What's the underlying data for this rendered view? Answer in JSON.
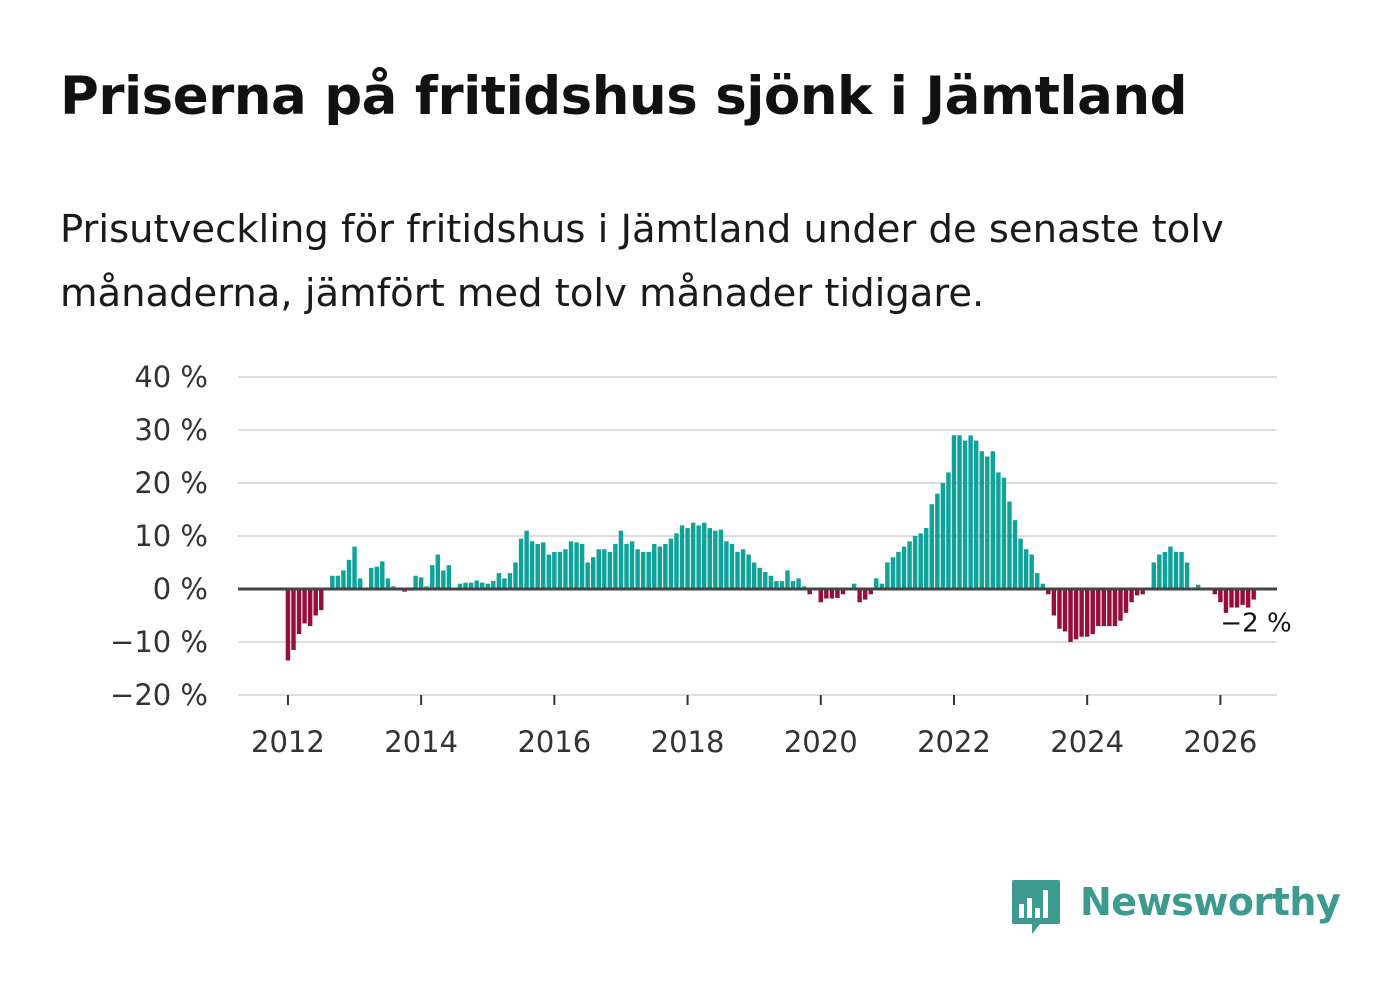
{
  "header": {
    "title": "Priserna på fritidshus sjönk i Jämtland",
    "subtitle": "Prisutveckling för fritidshus i Jämtland under de senaste tolv månaderna, jämfört med tolv månader tidigare."
  },
  "colors": {
    "positive": "#0fa39a",
    "negative": "#960f3c",
    "grid": "#dddddd",
    "zero_line": "#444444",
    "brand": "#3d9a8f"
  },
  "brand": {
    "name": "Newsworthy",
    "icon": "newsworthy-bar-chart-icon"
  },
  "chart_data": {
    "type": "bar",
    "title": "Priserna på fritidshus sjönk i Jämtland",
    "xlabel": "",
    "ylabel": "",
    "ylim": [
      -20,
      40
    ],
    "y_ticks": [
      40,
      30,
      20,
      10,
      0,
      -10,
      -20
    ],
    "y_tick_labels": [
      "40 %",
      "30 %",
      "20 %",
      "10 %",
      "0 %",
      "−10 %",
      "−20 %"
    ],
    "x_ticks": [
      2012,
      2014,
      2016,
      2018,
      2020,
      2022,
      2024,
      2026
    ],
    "x_tick_labels": [
      "2012",
      "2014",
      "2016",
      "2018",
      "2020",
      "2022",
      "2024",
      "2026"
    ],
    "x_range": [
      2011.25,
      2026.85
    ],
    "grid": true,
    "series": [
      {
        "name": "Prisutveckling",
        "start": 2012.0,
        "step_months": 1,
        "values": [
          -13.5,
          -11.5,
          -8.5,
          -6.5,
          -7,
          -5,
          -4,
          0,
          2.5,
          2.5,
          3.5,
          5.5,
          8,
          2,
          0,
          4,
          4.2,
          5.2,
          2,
          0.5,
          0,
          -0.5,
          -0.3,
          2.5,
          2.2,
          0.5,
          4.5,
          6.5,
          3.5,
          4.5,
          0,
          1,
          1.2,
          1.2,
          1.6,
          1.2,
          1,
          1.5,
          3,
          2,
          3,
          5,
          9.5,
          11,
          9,
          8.5,
          8.8,
          6.5,
          7,
          7,
          7.5,
          9,
          8.8,
          8.5,
          5,
          6,
          7.5,
          7.5,
          7,
          8.5,
          11,
          8.5,
          9,
          7.5,
          7,
          7,
          8.5,
          8,
          8.5,
          9.5,
          10.5,
          12,
          11.5,
          12.5,
          12,
          12.5,
          11.5,
          11,
          11.2,
          9,
          8.5,
          7,
          7.5,
          6.5,
          5,
          4,
          3.2,
          2.5,
          1.5,
          1.5,
          3.5,
          1.5,
          2,
          0.5,
          -1,
          0,
          -2.5,
          -1.8,
          -1.8,
          -1.7,
          -1,
          0,
          1,
          -2.5,
          -2,
          -1,
          2,
          1,
          5,
          6,
          7,
          8,
          9,
          10,
          10.5,
          11.5,
          16,
          18,
          20,
          22,
          29,
          29,
          28,
          29,
          28,
          26,
          25,
          26,
          22,
          21,
          16.5,
          13,
          9.5,
          7.5,
          6.5,
          3,
          1,
          -1,
          -5,
          -7.5,
          -8,
          -10,
          -9.5,
          -9,
          -9,
          -8.5,
          -7,
          -7,
          -7,
          -7,
          -6,
          -4.5,
          -2.5,
          -1.2,
          -1,
          0,
          5,
          6.5,
          7,
          8,
          7,
          7,
          5,
          0,
          0.8,
          0,
          0,
          -1,
          -2.5,
          -4.5,
          -3.5,
          -3.5,
          -3,
          -3.5,
          -2
        ],
        "last_value_label": "−2 %"
      }
    ]
  }
}
